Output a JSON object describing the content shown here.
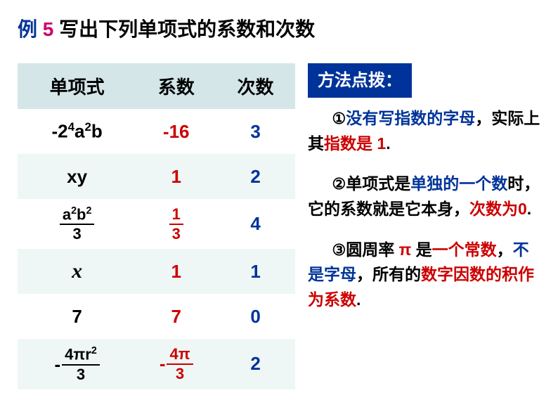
{
  "title": {
    "prefix": "例",
    "num": " 5 ",
    "text": "写出下列单项式的系数和次数"
  },
  "table": {
    "headers": [
      "单项式",
      "系数",
      "次数"
    ],
    "rows": [
      {
        "monomial_type": "expr1",
        "coeff": "-16",
        "degree": "3"
      },
      {
        "monomial_type": "plain",
        "monomial": "xy",
        "coeff": "1",
        "degree": "2"
      },
      {
        "monomial_type": "frac1",
        "coeff_type": "frac",
        "coeff_num": "1",
        "coeff_den": "3",
        "degree": "4"
      },
      {
        "monomial_type": "italic",
        "monomial": "x",
        "coeff": "1",
        "degree": "1"
      },
      {
        "monomial_type": "plain",
        "monomial": "7",
        "coeff": "7",
        "degree": "0"
      },
      {
        "monomial_type": "frac2",
        "coeff_type": "negfrac",
        "coeff_num": "4π",
        "coeff_den": "3",
        "degree": "2"
      }
    ]
  },
  "tips": {
    "header": "方法点拨：",
    "items": [
      {
        "parts": [
          {
            "cls": "indent",
            "text": ""
          },
          {
            "cls": "black circled",
            "text": "① "
          },
          {
            "cls": "blue",
            "text": "没有写指数的字母"
          },
          {
            "cls": "black",
            "text": "，实际上其"
          },
          {
            "cls": "red",
            "text": "指数是 1"
          },
          {
            "cls": "black",
            "text": "."
          }
        ]
      },
      {
        "parts": [
          {
            "cls": "indent",
            "text": ""
          },
          {
            "cls": "black circled",
            "text": "② "
          },
          {
            "cls": "black",
            "text": "单项式是"
          },
          {
            "cls": "blue",
            "text": "单独的一个数"
          },
          {
            "cls": "black",
            "text": "时，它的系数就是它本身，"
          },
          {
            "cls": "red",
            "text": "次数为0"
          },
          {
            "cls": "black",
            "text": "."
          }
        ]
      },
      {
        "parts": [
          {
            "cls": "indent",
            "text": ""
          },
          {
            "cls": "black circled",
            "text": "③ "
          },
          {
            "cls": "black",
            "text": "圆周率 "
          },
          {
            "cls": "red",
            "text": "π "
          },
          {
            "cls": "black",
            "text": "是"
          },
          {
            "cls": "red",
            "text": "一个常数"
          },
          {
            "cls": "black",
            "text": "，"
          },
          {
            "cls": "blue",
            "text": "不是字母"
          },
          {
            "cls": "black",
            "text": "，所有的"
          },
          {
            "cls": "red",
            "text": "数字因数的积作为系数"
          },
          {
            "cls": "black",
            "text": "."
          }
        ]
      }
    ]
  },
  "colors": {
    "header_bg": "#d4e6e8",
    "row_even_bg": "#eff6f6",
    "red": "#cc0000",
    "blue": "#003399",
    "pink": "#cc0066"
  }
}
